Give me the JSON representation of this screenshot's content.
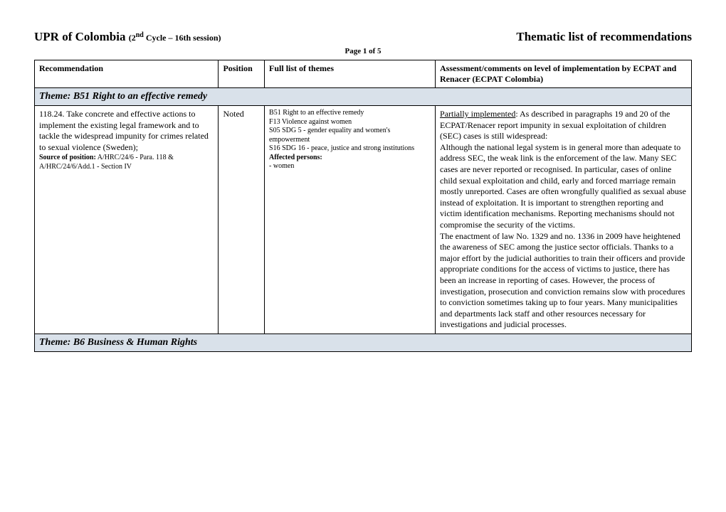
{
  "header": {
    "title_main": "UPR of Colombia",
    "title_sub": "(2",
    "title_sub_sup": "nd",
    "title_sub_rest": " Cycle – 16th session)",
    "title_right": "Thematic list of recommendations",
    "page_label": "Page 1 of 5"
  },
  "columns": {
    "recommendation": "Recommendation",
    "position": "Position",
    "themes": "Full list of themes",
    "assessment": "Assessment/comments on level of implementation by ECPAT and Renacer (ECPAT Colombia)"
  },
  "theme1": {
    "title": "Theme: B51 Right to an effective remedy"
  },
  "row1": {
    "rec_text": "118.24. Take concrete and effective actions to implement the existing legal framework and to tackle the widespread impunity for crimes related to sexual violence (Sweden);",
    "source_label": "Source of position:",
    "source_text": " A/HRC/24/6 - Para. 118 & A/HRC/24/6/Add.1 - Section IV",
    "position": "Noted",
    "themes_line1": "B51 Right to an effective remedy",
    "themes_line2": "F13 Violence against women",
    "themes_line3": "S05 SDG 5 - gender equality and women's empowerment",
    "themes_line4": "S16 SDG 16 - peace, justice and strong institutions",
    "themes_affected_label": "Affected persons:",
    "themes_affected_value": "- women",
    "assess_status": "Partially implemented",
    "assess_p1_rest": ": As described in paragraphs 19 and 20 of the ECPAT/Renacer report impunity in sexual exploitation of children (SEC) cases is still widespread:",
    "assess_p2": "Although the national legal system is in general more than adequate to address SEC, the weak link is the enforcement of the law. Many SEC cases are never reported or recognised. In particular, cases of online child sexual exploitation and child, early and forced marriage remain mostly unreported. Cases are often wrongfully qualified as sexual abuse instead of exploitation.  It is important to strengthen reporting and victim identification mechanisms. Reporting mechanisms should not compromise the security of the victims.",
    "assess_p3": "The enactment of law No. 1329 and no. 1336 in 2009 have heightened the awareness of SEC among the justice sector officials. Thanks to a major effort by the judicial authorities to train their officers and provide appropriate conditions for the access of victims to justice, there has been an increase in reporting of cases. However, the process of investigation, prosecution and conviction remains slow with procedures to conviction sometimes taking up to four years. Many municipalities and departments lack staff and other resources necessary for investigations and judicial processes."
  },
  "theme2": {
    "title": "Theme: B6 Business & Human Rights"
  }
}
